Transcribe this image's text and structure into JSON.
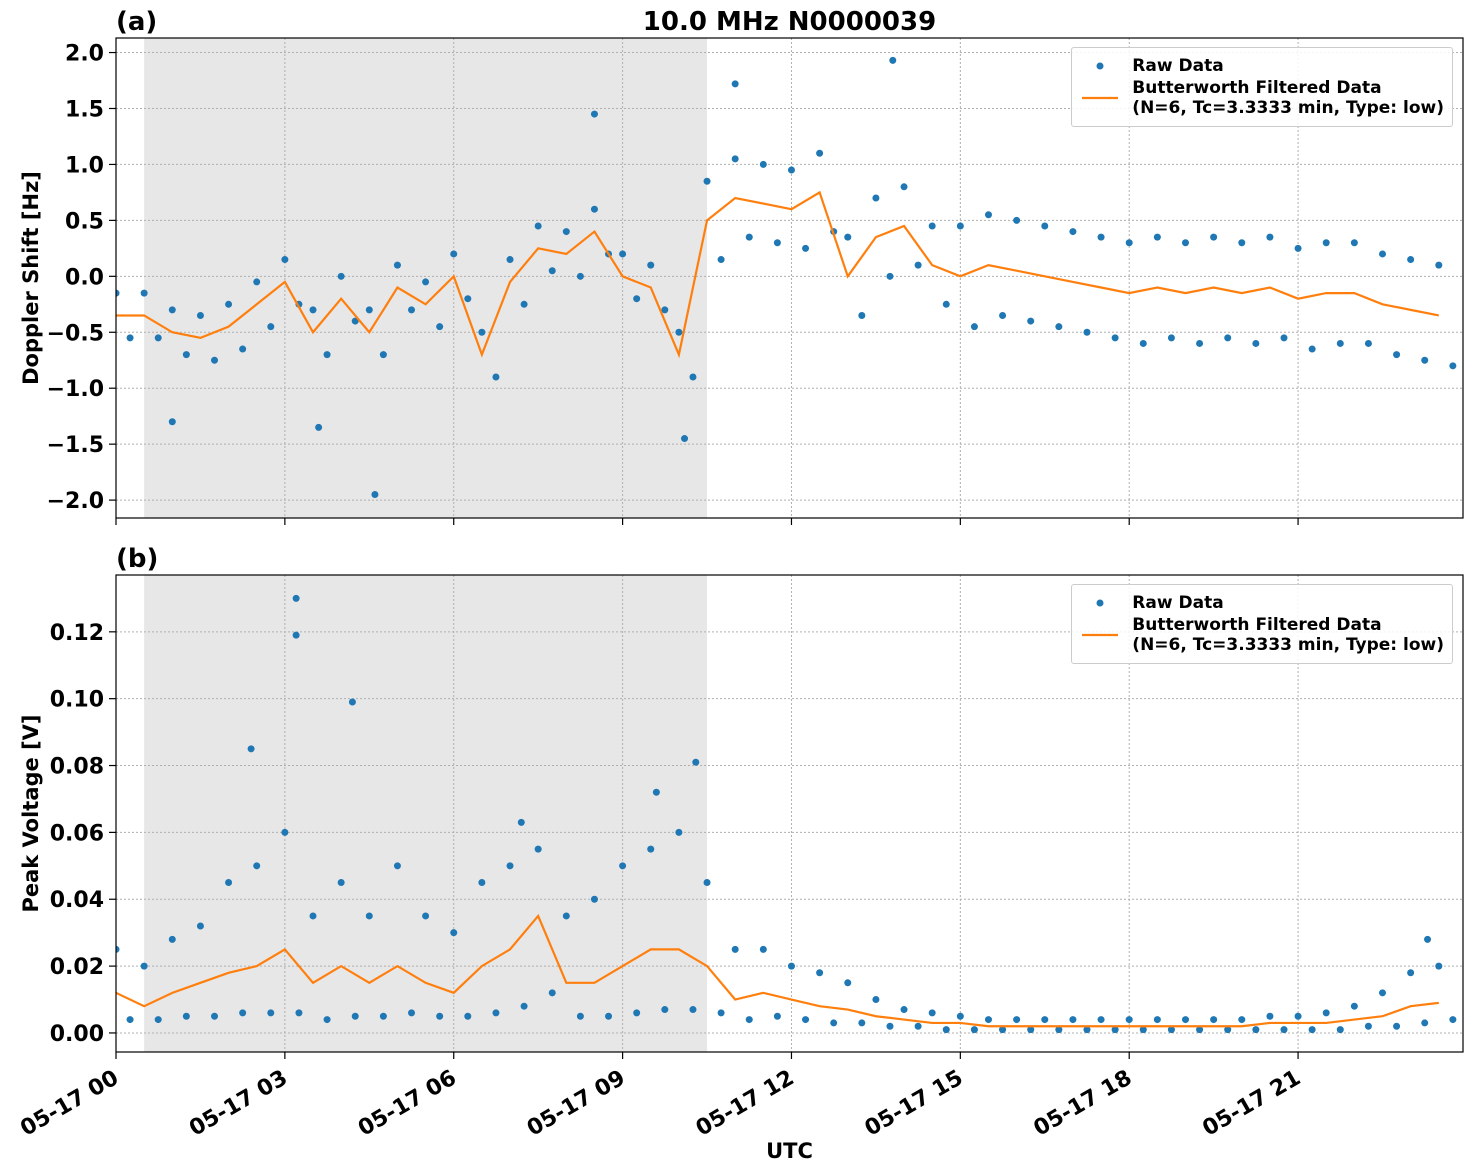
{
  "chart_data": [
    {
      "type": "combo",
      "title": "10.0 MHz N0000039",
      "panel_label": "(a)",
      "y_label": "Doppler Shift [Hz]",
      "xlim": [
        0,
        23.93
      ],
      "ylim": [
        -2.16,
        2.13
      ],
      "xticks": [
        0,
        3,
        6,
        9,
        12,
        15,
        18,
        21
      ],
      "yticks": [
        {
          "value": -2,
          "label": "−2.0"
        },
        {
          "value": -1.5,
          "label": "−1.5"
        },
        {
          "value": -1,
          "label": "−1.0"
        },
        {
          "value": -0.5,
          "label": "−0.5"
        },
        {
          "value": 0,
          "label": "0.0"
        },
        0.5,
        {
          "value": 1,
          "label": "1.0"
        },
        1.5,
        {
          "value": 2,
          "label": "2.0"
        }
      ],
      "grid": true,
      "legend": "upper right",
      "shaded_span": [
        0.5,
        10.5
      ],
      "shade_color": "#e7e7e7",
      "series": [
        {
          "name": "Raw Data",
          "type": "scatter",
          "color": "#1f77b4",
          "x": [
            0,
            0.25,
            0.5,
            0.75,
            1,
            1.25,
            1.5,
            1.75,
            2,
            2.25,
            2.5,
            2.75,
            3,
            3.25,
            3.5,
            3.75,
            4,
            4.25,
            4.5,
            4.75,
            5,
            5.25,
            5.5,
            5.75,
            6,
            6.25,
            6.5,
            6.75,
            7,
            7.25,
            7.5,
            7.75,
            8,
            8.25,
            8.5,
            8.75,
            9,
            9.25,
            9.5,
            9.75,
            10,
            10.25,
            10.5,
            10.75,
            11,
            11.25,
            11.5,
            11.75,
            12,
            12.25,
            12.5,
            12.75,
            13,
            13.25,
            13.5,
            13.75,
            14,
            14.25,
            14.5,
            14.75,
            15,
            15.25,
            15.5,
            15.75,
            16,
            16.25,
            16.5,
            16.75,
            17,
            17.25,
            17.5,
            17.75,
            18,
            18.25,
            18.5,
            18.75,
            19,
            19.25,
            19.5,
            19.75,
            20,
            20.25,
            20.5,
            20.75,
            21,
            21.25,
            21.5,
            21.75,
            22,
            22.25,
            22.5,
            22.75,
            23,
            23.25,
            23.5,
            23.75,
            4.6,
            13.8,
            8.5,
            11.0,
            10.1,
            3.6,
            1.0
          ],
          "values": [
            -0.15,
            -0.55,
            -0.15,
            -0.55,
            -0.3,
            -0.7,
            -0.35,
            -0.75,
            -0.25,
            -0.65,
            -0.05,
            -0.45,
            0.15,
            -0.25,
            -0.3,
            -0.7,
            0.0,
            -0.4,
            -0.3,
            -0.7,
            0.1,
            -0.3,
            -0.05,
            -0.45,
            0.2,
            -0.2,
            -0.5,
            -0.9,
            0.15,
            -0.25,
            0.45,
            0.05,
            0.4,
            0.0,
            0.6,
            0.2,
            0.2,
            -0.2,
            0.1,
            -0.3,
            -0.5,
            -0.9,
            0.85,
            0.15,
            1.05,
            0.35,
            1.0,
            0.3,
            0.95,
            0.25,
            1.1,
            0.4,
            0.35,
            -0.35,
            0.7,
            0.0,
            0.8,
            0.1,
            0.45,
            -0.25,
            0.45,
            -0.45,
            0.55,
            -0.35,
            0.5,
            -0.4,
            0.45,
            -0.45,
            0.4,
            -0.5,
            0.35,
            -0.55,
            0.3,
            -0.6,
            0.35,
            -0.55,
            0.3,
            -0.6,
            0.35,
            -0.55,
            0.3,
            -0.6,
            0.35,
            -0.55,
            0.25,
            -0.65,
            0.3,
            -0.6,
            0.3,
            -0.6,
            0.2,
            -0.7,
            0.15,
            -0.75,
            0.1,
            -0.8,
            -1.95,
            1.93,
            1.45,
            1.72,
            -1.45,
            -1.35,
            -1.3
          ]
        },
        {
          "name": "Butterworth Filtered Data\n(N=6, Tc=3.3333 min, Type: low)",
          "type": "line",
          "color": "#ff7f0e",
          "x": [
            0,
            0.5,
            1,
            1.5,
            2,
            2.5,
            3,
            3.5,
            4,
            4.5,
            5,
            5.5,
            6,
            6.5,
            7,
            7.5,
            8,
            8.5,
            9,
            9.5,
            10,
            10.5,
            11,
            11.5,
            12,
            12.5,
            13,
            13.5,
            14,
            14.5,
            15,
            15.5,
            16,
            16.5,
            17,
            17.5,
            18,
            18.5,
            19,
            19.5,
            20,
            20.5,
            21,
            21.5,
            22,
            22.5,
            23,
            23.5
          ],
          "values": [
            -0.35,
            -0.35,
            -0.5,
            -0.55,
            -0.45,
            -0.25,
            -0.05,
            -0.5,
            -0.2,
            -0.5,
            -0.1,
            -0.25,
            0.0,
            -0.7,
            -0.05,
            0.25,
            0.2,
            0.4,
            0.0,
            -0.1,
            -0.7,
            0.5,
            0.7,
            0.65,
            0.6,
            0.75,
            0.0,
            0.35,
            0.45,
            0.1,
            0.0,
            0.1,
            0.05,
            0.0,
            -0.05,
            -0.1,
            -0.15,
            -0.1,
            -0.15,
            -0.1,
            -0.15,
            -0.1,
            -0.2,
            -0.15,
            -0.15,
            -0.25,
            -0.3,
            -0.35
          ]
        }
      ]
    },
    {
      "type": "combo",
      "panel_label": "(b)",
      "y_label": "Peak Voltage [V]",
      "x_label": "UTC",
      "xlim": [
        0,
        23.93
      ],
      "ylim": [
        -0.0057,
        0.137
      ],
      "xticks": [
        {
          "value": 0,
          "label": "05-17 00"
        },
        {
          "value": 3,
          "label": "05-17 03"
        },
        {
          "value": 6,
          "label": "05-17 06"
        },
        {
          "value": 9,
          "label": "05-17 09"
        },
        {
          "value": 12,
          "label": "05-17 12"
        },
        {
          "value": 15,
          "label": "05-17 15"
        },
        {
          "value": 18,
          "label": "05-17 18"
        },
        {
          "value": 21,
          "label": "05-17 21"
        }
      ],
      "yticks": [
        {
          "value": 0,
          "label": "0.00"
        },
        0.02,
        0.04,
        0.06,
        0.08,
        {
          "value": 0.1,
          "label": "0.10"
        },
        0.12
      ],
      "grid": true,
      "legend": "upper right",
      "shaded_span": [
        0.5,
        10.5
      ],
      "shade_color": "#e7e7e7",
      "series": [
        {
          "name": "Raw Data",
          "type": "scatter",
          "color": "#1f77b4",
          "x": [
            0,
            0.25,
            0.5,
            0.75,
            1,
            1.25,
            1.5,
            1.75,
            2,
            2.25,
            2.5,
            2.75,
            3,
            3.25,
            3.5,
            3.75,
            4,
            4.25,
            4.5,
            4.75,
            5,
            5.25,
            5.5,
            5.75,
            6,
            6.25,
            6.5,
            6.75,
            7,
            7.25,
            7.5,
            7.75,
            8,
            8.25,
            8.5,
            8.75,
            9,
            9.25,
            9.5,
            9.75,
            10,
            10.25,
            10.5,
            10.75,
            11,
            11.25,
            11.5,
            11.75,
            12,
            12.25,
            12.5,
            12.75,
            13,
            13.25,
            13.5,
            13.75,
            14,
            14.25,
            14.5,
            14.75,
            15,
            15.25,
            15.5,
            15.75,
            16,
            16.25,
            16.5,
            16.75,
            17,
            17.25,
            17.5,
            17.75,
            18,
            18.25,
            18.5,
            18.75,
            19,
            19.25,
            19.5,
            19.75,
            20,
            20.25,
            20.5,
            20.75,
            21,
            21.25,
            21.5,
            21.75,
            22,
            22.25,
            22.5,
            22.75,
            23,
            23.25,
            23.5,
            23.75,
            3.2,
            3.2,
            4.2,
            2.4,
            10.3,
            9.6,
            7.2,
            23.3
          ],
          "values": [
            0.025,
            0.004,
            0.02,
            0.004,
            0.028,
            0.005,
            0.032,
            0.005,
            0.045,
            0.006,
            0.05,
            0.006,
            0.06,
            0.006,
            0.035,
            0.004,
            0.045,
            0.005,
            0.035,
            0.005,
            0.05,
            0.006,
            0.035,
            0.005,
            0.03,
            0.005,
            0.045,
            0.006,
            0.05,
            0.008,
            0.055,
            0.012,
            0.035,
            0.005,
            0.04,
            0.005,
            0.05,
            0.006,
            0.055,
            0.007,
            0.06,
            0.007,
            0.045,
            0.006,
            0.025,
            0.004,
            0.025,
            0.005,
            0.02,
            0.004,
            0.018,
            0.003,
            0.015,
            0.003,
            0.01,
            0.002,
            0.007,
            0.002,
            0.006,
            0.001,
            0.005,
            0.001,
            0.004,
            0.001,
            0.004,
            0.001,
            0.004,
            0.001,
            0.004,
            0.001,
            0.004,
            0.001,
            0.004,
            0.001,
            0.004,
            0.001,
            0.004,
            0.001,
            0.004,
            0.001,
            0.004,
            0.001,
            0.005,
            0.001,
            0.005,
            0.001,
            0.006,
            0.001,
            0.008,
            0.002,
            0.012,
            0.002,
            0.018,
            0.003,
            0.02,
            0.004,
            0.13,
            0.119,
            0.099,
            0.085,
            0.081,
            0.072,
            0.063,
            0.028
          ]
        },
        {
          "name": "Butterworth Filtered Data\n(N=6, Tc=3.3333 min, Type: low)",
          "type": "line",
          "color": "#ff7f0e",
          "x": [
            0,
            0.5,
            1,
            1.5,
            2,
            2.5,
            3,
            3.5,
            4,
            4.5,
            5,
            5.5,
            6,
            6.5,
            7,
            7.5,
            8,
            8.5,
            9,
            9.5,
            10,
            10.5,
            11,
            11.5,
            12,
            12.5,
            13,
            13.5,
            14,
            14.5,
            15,
            15.5,
            16,
            16.5,
            17,
            17.5,
            18,
            18.5,
            19,
            19.5,
            20,
            20.5,
            21,
            21.5,
            22,
            22.5,
            23,
            23.5
          ],
          "values": [
            0.012,
            0.008,
            0.012,
            0.015,
            0.018,
            0.02,
            0.025,
            0.015,
            0.02,
            0.015,
            0.02,
            0.015,
            0.012,
            0.02,
            0.025,
            0.035,
            0.015,
            0.015,
            0.02,
            0.025,
            0.025,
            0.02,
            0.01,
            0.012,
            0.01,
            0.008,
            0.007,
            0.005,
            0.004,
            0.003,
            0.003,
            0.002,
            0.002,
            0.002,
            0.002,
            0.002,
            0.002,
            0.002,
            0.002,
            0.002,
            0.002,
            0.003,
            0.003,
            0.003,
            0.004,
            0.005,
            0.008,
            0.009
          ]
        }
      ]
    }
  ]
}
